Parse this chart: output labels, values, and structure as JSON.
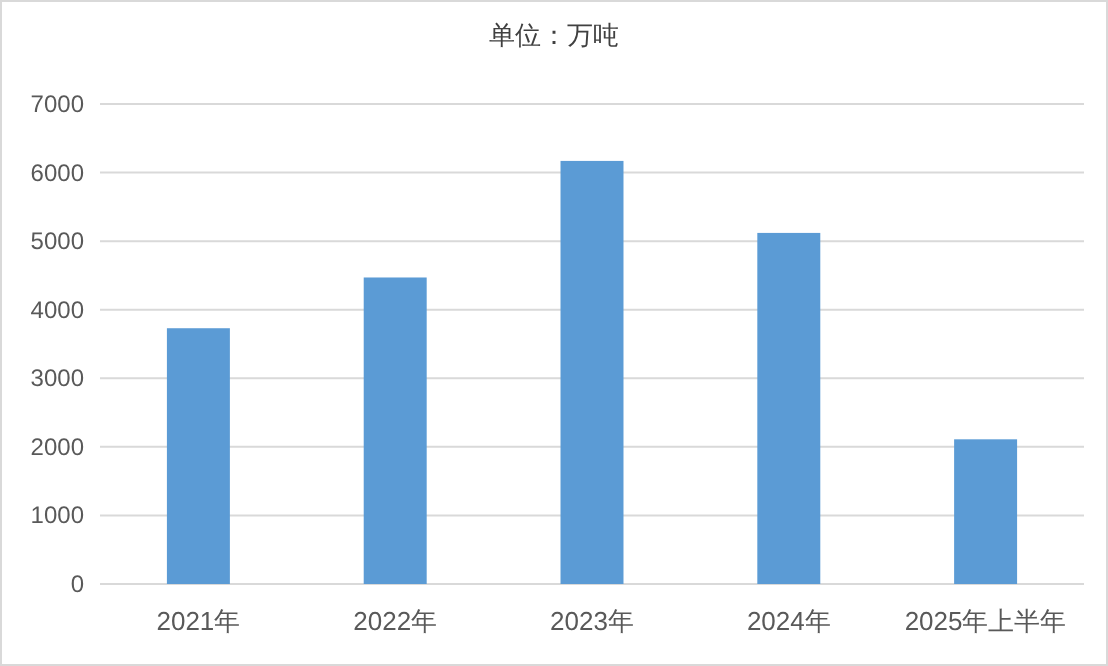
{
  "chart_data": {
    "type": "bar",
    "title": "单位：万吨",
    "categories": [
      "2021年",
      "2022年",
      "2023年",
      "2024年",
      "2025年上半年"
    ],
    "values": [
      3730,
      4470,
      6170,
      5120,
      2110
    ],
    "color": "#5b9bd5",
    "ylim": [
      0,
      7000
    ],
    "yticks": [
      0,
      1000,
      2000,
      3000,
      4000,
      5000,
      6000,
      7000
    ],
    "grid": "y"
  }
}
